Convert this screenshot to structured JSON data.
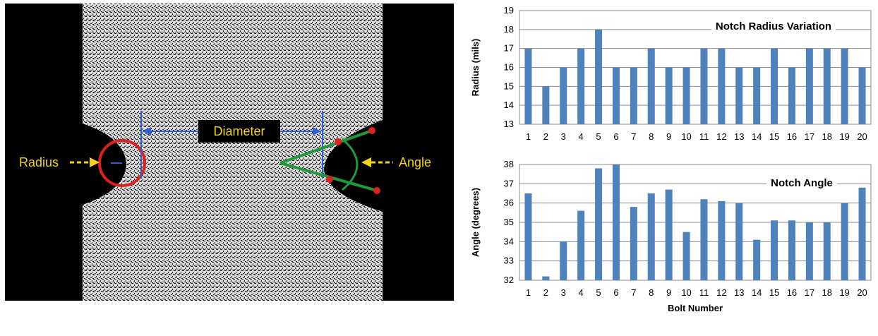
{
  "image": {
    "labels": {
      "radius": "Radius",
      "diameter": "Diameter",
      "angle": "Angle"
    },
    "colors": {
      "background": "#000000",
      "specimen_speckle": "#d9d9d9",
      "label": "#f2d41c",
      "diameter_line": "#2f5fd0",
      "radius_circle": "#e0201e",
      "angle_lines": "#1f9a3a",
      "angle_points": "#e0201e"
    }
  },
  "chart_data": [
    {
      "type": "bar",
      "title": "Notch Radius Variation",
      "xlabel": "",
      "ylabel": "Radius (mils)",
      "ylim": [
        13,
        19
      ],
      "yticks": [
        13,
        14,
        15,
        16,
        17,
        18,
        19
      ],
      "categories": [
        "1",
        "2",
        "3",
        "4",
        "5",
        "6",
        "7",
        "8",
        "9",
        "10",
        "11",
        "12",
        "13",
        "14",
        "15",
        "16",
        "17",
        "18",
        "19",
        "20"
      ],
      "values": [
        17,
        15,
        16,
        17,
        18,
        16,
        16,
        17,
        16,
        16,
        17,
        17,
        16,
        16,
        17,
        16,
        17,
        17,
        17,
        16
      ],
      "grid": true,
      "legend": "none",
      "bar_color": "#4f81bd"
    },
    {
      "type": "bar",
      "title": "Notch Angle",
      "xlabel": "Bolt Number",
      "ylabel": "Angle (degrees)",
      "ylim": [
        32,
        38
      ],
      "yticks": [
        32,
        33,
        34,
        35,
        36,
        37,
        38
      ],
      "categories": [
        "1",
        "2",
        "3",
        "4",
        "5",
        "6",
        "7",
        "8",
        "9",
        "10",
        "11",
        "12",
        "13",
        "14",
        "15",
        "16",
        "17",
        "18",
        "19",
        "20"
      ],
      "values": [
        36.5,
        32.2,
        34.0,
        35.6,
        37.8,
        38.0,
        35.8,
        36.5,
        36.7,
        34.5,
        36.2,
        36.1,
        36.0,
        34.1,
        35.1,
        35.1,
        35.0,
        35.0,
        36.0,
        36.8
      ],
      "grid": true,
      "legend": "none",
      "bar_color": "#4f81bd"
    }
  ]
}
